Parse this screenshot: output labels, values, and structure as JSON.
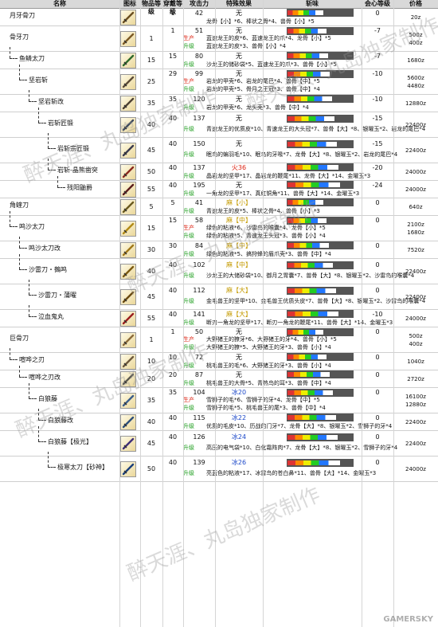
{
  "headers": {
    "name": "名称",
    "icon": "图标",
    "level": "物品等级",
    "slots": "穿戴等级",
    "attack": "攻击力",
    "special": "特殊效果",
    "sharpness": "斩味",
    "affinity": "会心等级",
    "price": "价格"
  },
  "labels": {
    "create": "生产",
    "upgrade": "升级"
  },
  "watermarks": [
    "醉天涯、丸岛独家制作",
    "醉天涯、丸岛独家制作",
    "醉天涯、丸岛独家制作",
    "醉天涯、丸岛独家制作",
    "醉天涯、丸岛独家制作"
  ],
  "brand": "GAMERSKY",
  "weapons": [
    {
      "name": "月牙骨刀",
      "level": "",
      "slots": "1",
      "attack": "42",
      "special": "无",
      "affinity": "0",
      "price": "20z",
      "sub": [
        {
          "label": "",
          "text": "龙骨【小】*6、棒状之骨*4、兽骨【小】*5"
        }
      ]
    },
    {
      "name": "骨牙刀",
      "level": "1",
      "slots": "1",
      "attack": "51",
      "special": "无",
      "affinity": "-7",
      "price": "500z\n400z",
      "sub": [
        {
          "label": "create",
          "text": "蓝速龙王的皮*6、蓝速龙王的爪*4、龙骨【小】*5"
        },
        {
          "label": "upgrade",
          "text": "蓝速龙王的皮*3、兽骨【小】*4"
        }
      ]
    },
    {
      "name": "鱼鳞太刀",
      "level": "15",
      "slots": "15",
      "attack": "80",
      "special": "无",
      "affinity": "-7",
      "price": "1680z",
      "sub": [
        {
          "label": "upgrade",
          "text": "沙龙王的储砂袋*5、蓝速龙王的爪*3、兽骨【小】*5"
        }
      ]
    },
    {
      "name": "坚岩斩",
      "level": "25",
      "slots": "29",
      "attack": "99",
      "special": "无",
      "affinity": "-10",
      "price": "5600z\n4480z",
      "sub": [
        {
          "label": "create",
          "text": "岩龙的甲壳*6、岩龙的尾巴*4、兽骨【中】*5"
        },
        {
          "label": "upgrade",
          "text": "岩龙的甲壳*5、骨月之王冠*3、兽骨【中】*4"
        }
      ]
    },
    {
      "name": "坚岩斩改",
      "level": "35",
      "slots": "35",
      "attack": "120",
      "special": "无",
      "affinity": "-10",
      "price": "12880z",
      "sub": [
        {
          "label": "upgrade",
          "text": "岩龙的甲壳*6、龙头壳*3、兽骨【中】*4"
        }
      ]
    },
    {
      "name": "岩斩匠锻",
      "level": "40",
      "slots": "40",
      "attack": "137",
      "special": "无",
      "affinity": "-15",
      "price": "22400z",
      "sub": [
        {
          "label": "upgrade",
          "text": "青速龙王的优质皮*10、青速龙王的大头冠*7、兽骨【大】*8、银曜玉*2、岩龙的尾巴*4"
        }
      ]
    },
    {
      "name": "岩斩宗匠锻",
      "level": "45",
      "slots": "40",
      "attack": "150",
      "special": "无",
      "affinity": "-15",
      "price": "22400z",
      "sub": [
        {
          "label": "upgrade",
          "text": "眠鸟的蝙羽毛*10、眠鸟的牙喙*7、龙骨【大】*8、银曜玉*2、岩龙的尾巴*4"
        }
      ]
    },
    {
      "name": "岩斩-晶熊凿突",
      "level": "50",
      "slots": "40",
      "attack": "137",
      "special": "火36",
      "affinity": "-20",
      "price": "24000z",
      "sub": [
        {
          "label": "upgrade",
          "text": "晶岩龙的坚甲*17、晶岩龙的鞭尾*11、龙骨【大】*14、金曜玉*3"
        }
      ]
    },
    {
      "name": "残阳鼬爵",
      "level": "55",
      "slots": "40",
      "attack": "195",
      "special": "无",
      "affinity": "-24",
      "price": "24000z",
      "sub": [
        {
          "label": "upgrade",
          "text": "一角龙的坚甲*17、真红铜角*11、兽骨【大】*14、金曜玉*3"
        }
      ]
    },
    {
      "name": "角蝰刀",
      "level": "5",
      "slots": "5",
      "attack": "41",
      "special": "麻【小】",
      "affinity": "0",
      "price": "640z",
      "sub": [
        {
          "label": "upgrade",
          "text": "青速龙王的皮*5、棒状之骨*4、兽骨【小】*3"
        }
      ]
    },
    {
      "name": "鸣沙太刀",
      "level": "15",
      "slots": "15",
      "attack": "58",
      "special": "麻【中】",
      "affinity": "0",
      "price": "2100z\n1680z",
      "sub": [
        {
          "label": "create",
          "text": "绿色的粘液*6、沙雷鸟的喉囊*4、龙骨【小】*5"
        },
        {
          "label": "upgrade",
          "text": "绿色的粘液*5、青速龙王头冠*3、兽骨【小】*4"
        }
      ]
    },
    {
      "name": "鸣沙太刀改",
      "level": "30",
      "slots": "30",
      "attack": "84",
      "special": "麻【中】",
      "affinity": "0",
      "price": "7520z",
      "sub": [
        {
          "label": "upgrade",
          "text": "绿色的粘液*5、搞狩蜂的眉爪壳*3、兽骨【中】*4"
        }
      ]
    },
    {
      "name": "沙雷刀・鵺鸣",
      "level": "40",
      "slots": "40",
      "attack": "102",
      "special": "麻【中】",
      "affinity": "0",
      "price": "22400z",
      "sub": [
        {
          "label": "upgrade",
          "text": "沙龙王的大储砂袋*10、御月之胃囊*7、兽骨【大】*8、银曜玉*2、沙雷鸟的喉囊*4"
        }
      ]
    },
    {
      "name": "沙雷刀・蒲曜",
      "level": "45",
      "slots": "40",
      "attack": "112",
      "special": "麻【大】",
      "affinity": "0",
      "price": "22400z",
      "sub": [
        {
          "label": "upgrade",
          "text": "金毛兽王的坚甲*10、金毛兽王优质头皮*7、兽骨【大】*8、银曜玉*2、沙雷鸟的喉囊*4"
        }
      ]
    },
    {
      "name": "泣血鬼丸",
      "level": "55",
      "slots": "40",
      "attack": "141",
      "special": "麻【大】",
      "affinity": "-10",
      "price": "24000z",
      "sub": [
        {
          "label": "upgrade",
          "text": "断刃一角龙的坚甲*17、断刃一角龙的鞭尾*11、兽骨【大】*14、金曜玉*3"
        }
      ]
    },
    {
      "name": "巨骨刀",
      "level": "1",
      "slots": "1",
      "attack": "50",
      "special": "无",
      "affinity": "0",
      "price": "500z\n400z",
      "sub": [
        {
          "label": "create",
          "text": "大野猪王的獠牙*6、大野猪王的牙*4、兽骨【小】*5"
        },
        {
          "label": "upgrade",
          "text": "大野猪王的獠*5、大野猪王的牙*3、兽骨【小】*4"
        }
      ]
    },
    {
      "name": "喧哗之刃",
      "level": "10",
      "slots": "10",
      "attack": "72",
      "special": "无",
      "affinity": "0",
      "price": "1040z",
      "sub": [
        {
          "label": "upgrade",
          "text": "桃毛兽王的毛*6、大野猪王的牙*3、兽骨【小】*4"
        }
      ]
    },
    {
      "name": "喧哗之刃改",
      "level": "20",
      "slots": "20",
      "attack": "87",
      "special": "无",
      "affinity": "0",
      "price": "2720z",
      "sub": [
        {
          "label": "upgrade",
          "text": "桃毛兽王的大骨*5、青热鸟的耳*3、兽骨【中】*4"
        }
      ]
    },
    {
      "name": "白狼藤",
      "level": "35",
      "slots": "35",
      "attack": "104",
      "special": "冰20",
      "affinity": "0",
      "price": "16100z\n12880z",
      "sub": [
        {
          "label": "create",
          "text": "雪狮子的毛*6、雪狮子的牙*4、龙骨【中】*5"
        },
        {
          "label": "upgrade",
          "text": "雪狮子的毛*5、桃毛兽王的尾*3、兽骨【中】*4"
        }
      ]
    },
    {
      "name": "白狼藤改",
      "level": "40",
      "slots": "40",
      "attack": "115",
      "special": "冰22",
      "affinity": "0",
      "price": "22400z",
      "sub": [
        {
          "label": "upgrade",
          "text": "优质的毛皮*10、历战的门牙*7、龙骨【大】*8、银曜玉*2、雪狮子的牙*4"
        }
      ]
    },
    {
      "name": "白狼藤【极光】",
      "level": "45",
      "slots": "40",
      "attack": "126",
      "special": "冰24",
      "affinity": "0",
      "price": "22400z",
      "sub": [
        {
          "label": "upgrade",
          "text": "高压的电气袋*10、白化霜阵肉*7、龙骨【大】*8、银曜玉*2、雪狮子的牙*4"
        }
      ]
    },
    {
      "name": "极寒太刀【砂神】",
      "level": "50",
      "slots": "40",
      "attack": "139",
      "special": "冰26",
      "affinity": "0",
      "price": "24000z",
      "sub": [
        {
          "label": "upgrade",
          "text": "亮蓝色的粘液*17、冰雷鸟的苍白鼻*11、兽骨【大】*14、金曜玉*3"
        }
      ]
    }
  ]
}
